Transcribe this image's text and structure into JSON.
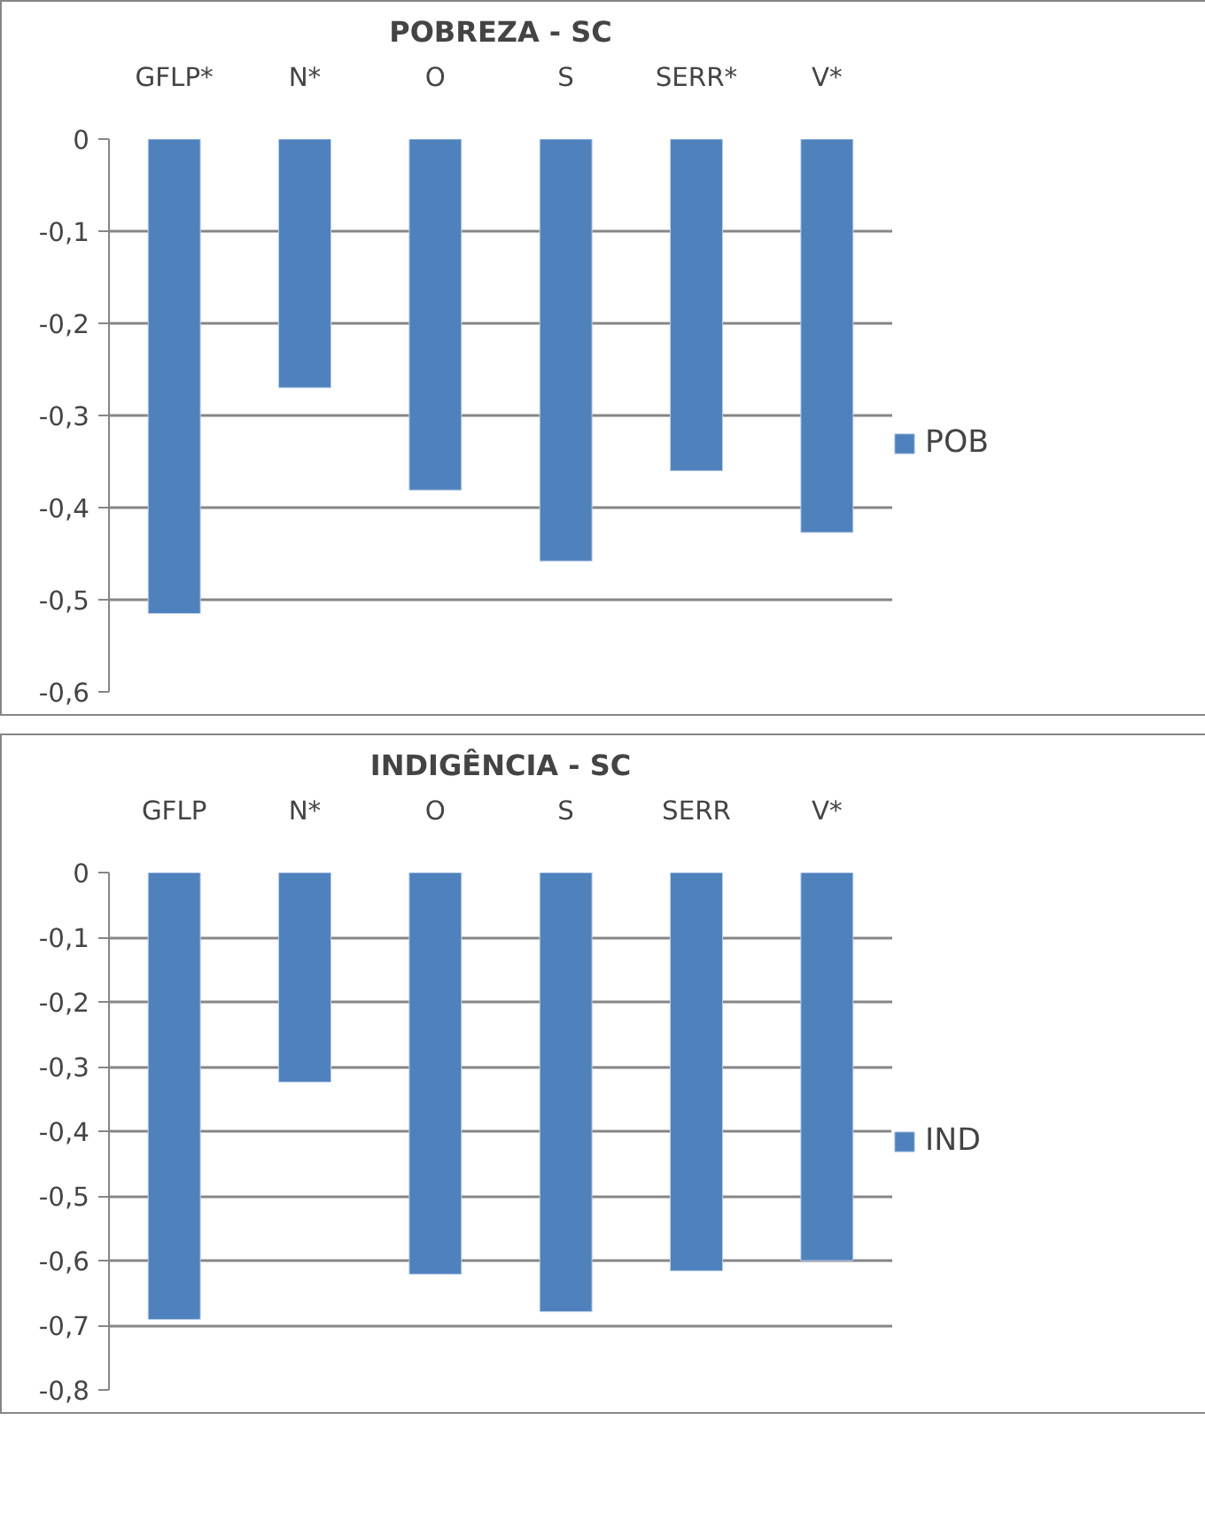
{
  "chart_data": [
    {
      "type": "bar",
      "title": "POBREZA - SC",
      "categories": [
        "GFLP*",
        "N*",
        "O",
        "S",
        "SERR*",
        "V*"
      ],
      "series": [
        {
          "name": "POB",
          "color": "#4f81bd",
          "values": [
            -0.515,
            -0.27,
            -0.381,
            -0.458,
            -0.36,
            -0.427
          ]
        }
      ],
      "ylim": [
        -0.6,
        0
      ],
      "yticks": [
        {
          "value": 0,
          "label": "0"
        },
        {
          "value": -0.1,
          "label": "-0,1"
        },
        {
          "value": -0.2,
          "label": "-0,2"
        },
        {
          "value": -0.3,
          "label": "-0,3"
        },
        {
          "value": -0.4,
          "label": "-0,4"
        },
        {
          "value": -0.5,
          "label": "-0,5"
        },
        {
          "value": -0.6,
          "label": "-0,6"
        }
      ],
      "grid": "y",
      "legend": "right"
    },
    {
      "type": "bar",
      "title": "INDIGÊNCIA - SC",
      "categories": [
        "GFLP",
        "N*",
        "O",
        "S",
        "SERR",
        "V*"
      ],
      "series": [
        {
          "name": "IND",
          "color": "#4f81bd",
          "values": [
            -0.691,
            -0.324,
            -0.621,
            -0.679,
            -0.616,
            -0.6
          ]
        }
      ],
      "ylim": [
        -0.8,
        0
      ],
      "yticks": [
        {
          "value": 0,
          "label": "0"
        },
        {
          "value": -0.1,
          "label": "-0,1"
        },
        {
          "value": -0.2,
          "label": "-0,2"
        },
        {
          "value": -0.3,
          "label": "-0,3"
        },
        {
          "value": -0.4,
          "label": "-0,4"
        },
        {
          "value": -0.5,
          "label": "-0,5"
        },
        {
          "value": -0.6,
          "label": "-0,6"
        },
        {
          "value": -0.7,
          "label": "-0,7"
        },
        {
          "value": -0.8,
          "label": "-0,8"
        }
      ],
      "grid": "y",
      "legend": "right"
    }
  ]
}
